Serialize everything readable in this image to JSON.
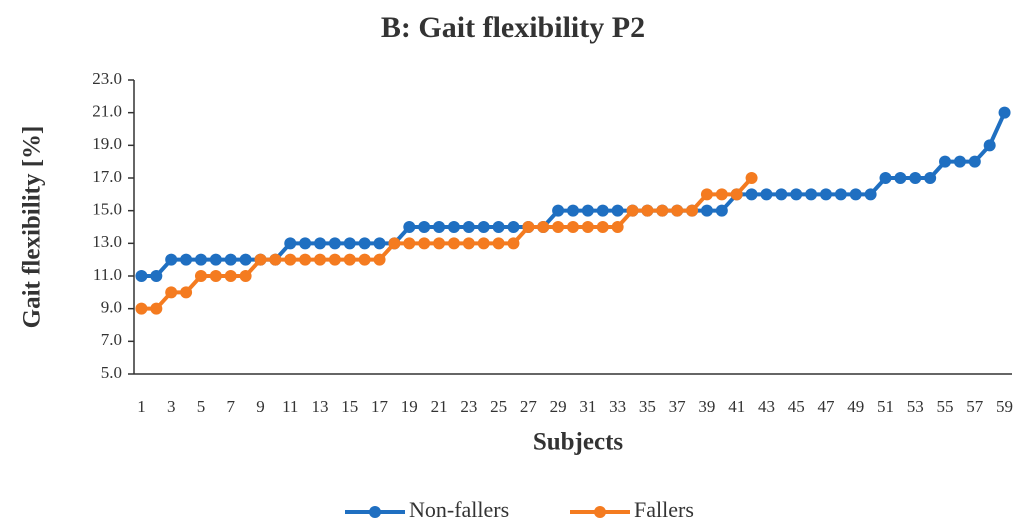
{
  "chart_data": {
    "type": "line",
    "title": "B: Gait flexibility P2",
    "x_label": "Subjects",
    "y_label": "Gait flexibility [%]",
    "categories": [
      1,
      null,
      3,
      null,
      5,
      null,
      7,
      null,
      9,
      null,
      11,
      null,
      13,
      null,
      15,
      null,
      17,
      null,
      19,
      null,
      21,
      null,
      23,
      null,
      25,
      null,
      27,
      null,
      29,
      null,
      31,
      null,
      33,
      null,
      35,
      null,
      37,
      null,
      39,
      null,
      41,
      null,
      43,
      null,
      45,
      null,
      47,
      null,
      49,
      null,
      51,
      null,
      53,
      null,
      55,
      null,
      57,
      null,
      59
    ],
    "series": [
      {
        "name": "Non-fallers",
        "color": "#1f6fc1",
        "values": [
          11,
          11,
          12,
          12,
          12,
          12,
          12,
          12,
          12,
          12,
          13,
          13,
          13,
          13,
          13,
          13,
          13,
          13,
          14,
          14,
          14,
          14,
          14,
          14,
          14,
          14,
          14,
          14,
          15,
          15,
          15,
          15,
          15,
          15,
          15,
          15,
          15,
          15,
          15,
          15,
          16,
          16,
          16,
          16,
          16,
          16,
          16,
          16,
          16,
          16,
          17,
          17,
          17,
          17,
          18,
          18,
          18,
          19,
          21
        ]
      },
      {
        "name": "Fallers",
        "color": "#f47b20",
        "values": [
          9,
          9,
          10,
          10,
          11,
          11,
          11,
          11,
          12,
          12,
          12,
          12,
          12,
          12,
          12,
          12,
          12,
          13,
          13,
          13,
          13,
          13,
          13,
          13,
          13,
          13,
          14,
          14,
          14,
          14,
          14,
          14,
          14,
          15,
          15,
          15,
          15,
          15,
          16,
          16,
          16,
          17,
          null,
          null,
          null,
          null,
          null,
          null,
          null,
          null,
          null,
          null,
          null,
          null,
          null,
          null,
          null,
          null,
          null
        ]
      }
    ],
    "ylim": [
      5,
      23
    ],
    "yticks": [
      {
        "value": 5,
        "label": "5.0"
      },
      {
        "value": 7,
        "label": "7.0"
      },
      {
        "value": 9,
        "label": "9.0"
      },
      {
        "value": 11,
        "label": "11.0"
      },
      {
        "value": 13,
        "label": "13.0"
      },
      {
        "value": 15,
        "label": "15.0"
      },
      {
        "value": 17,
        "label": "17.0"
      },
      {
        "value": 19,
        "label": "19.0"
      },
      {
        "value": 21,
        "label": "21.0"
      },
      {
        "value": 23,
        "label": "23.0"
      }
    ],
    "legend": "bottom"
  }
}
